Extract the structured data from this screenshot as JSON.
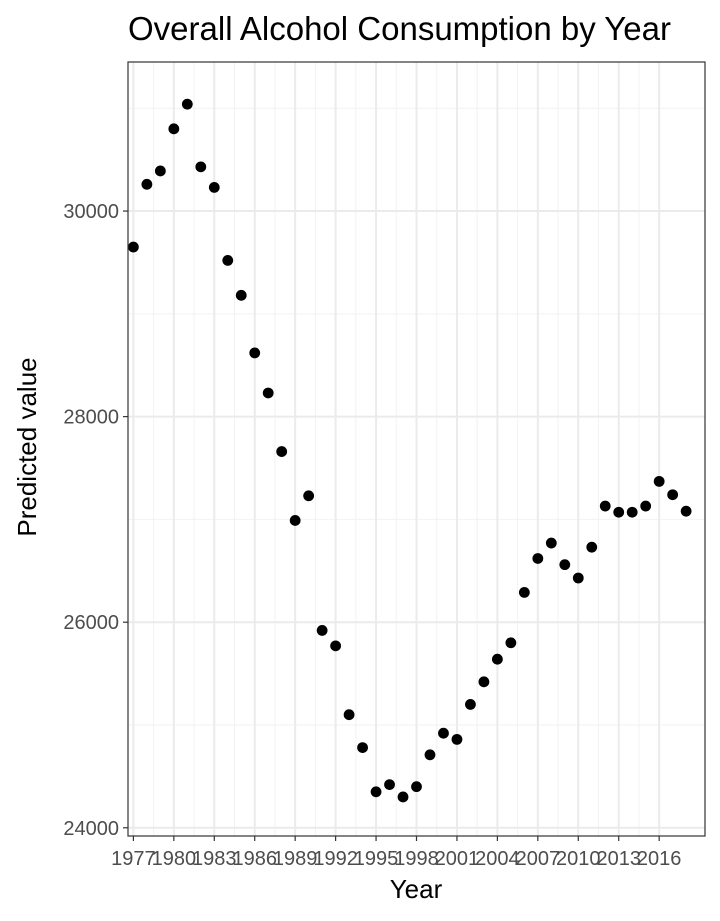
{
  "chart_data": {
    "type": "scatter",
    "title": "Overall Alcohol Consumption by Year",
    "xlabel": "Year",
    "ylabel": "Predicted value",
    "xlim": [
      1976.6,
      2019.4
    ],
    "ylim": [
      23920,
      31450
    ],
    "x_ticks": [
      1977,
      1980,
      1983,
      1986,
      1989,
      1992,
      1995,
      1998,
      2001,
      2004,
      2007,
      2010,
      2013,
      2016
    ],
    "y_ticks": [
      24000,
      26000,
      28000,
      30000
    ],
    "grid": true,
    "colors": {
      "point": "#000000",
      "grid": "#ebebeb",
      "panel_border": "#333333"
    },
    "x": [
      1977,
      1978,
      1979,
      1980,
      1981,
      1982,
      1983,
      1984,
      1985,
      1986,
      1987,
      1988,
      1989,
      1990,
      1991,
      1992,
      1993,
      1994,
      1995,
      1996,
      1997,
      1998,
      1999,
      2000,
      2001,
      2002,
      2003,
      2004,
      2005,
      2006,
      2007,
      2008,
      2009,
      2010,
      2011,
      2012,
      2013,
      2014,
      2015,
      2016,
      2017,
      2018
    ],
    "y": [
      29650,
      30260,
      30390,
      30800,
      31040,
      30430,
      30230,
      29520,
      29180,
      28620,
      28230,
      27660,
      26990,
      27230,
      25920,
      25770,
      25100,
      24780,
      24350,
      24420,
      24300,
      24400,
      24710,
      24920,
      24860,
      25200,
      25420,
      25640,
      25800,
      26290,
      26620,
      26770,
      26560,
      26430,
      26730,
      27130,
      27070,
      27070,
      27130,
      27370,
      27240,
      27080
    ]
  }
}
